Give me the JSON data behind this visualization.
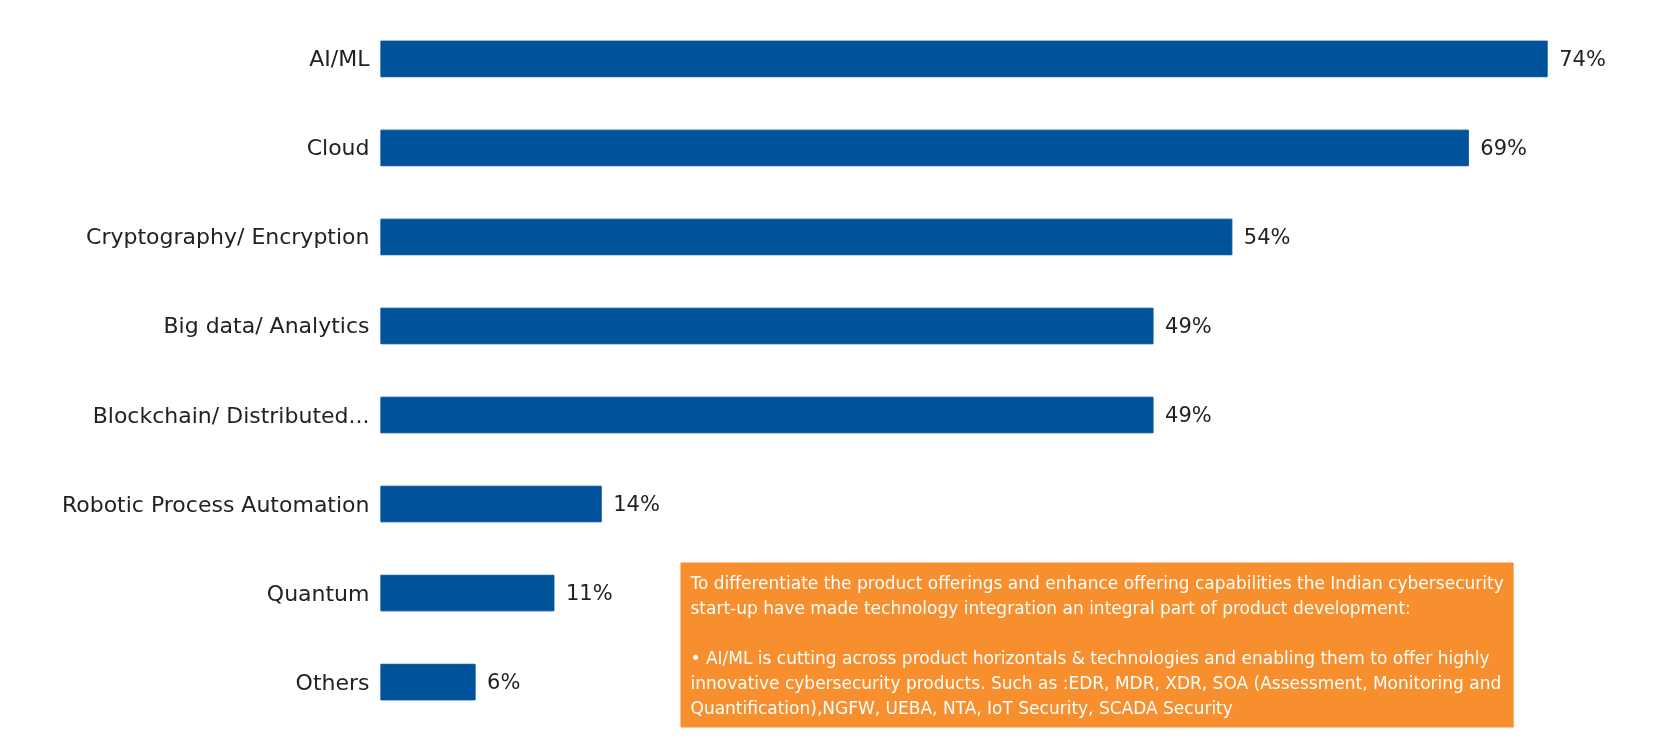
{
  "chart_data": {
    "type": "bar",
    "orientation": "horizontal",
    "categories": [
      "AI/ML",
      "Cloud",
      "Cryptography/ Encryption",
      "Big data/ Analytics",
      "Blockchain/ Distributed...",
      "Robotic Process Automation",
      "Quantum",
      "Others"
    ],
    "values": [
      74,
      69,
      54,
      49,
      49,
      14,
      11,
      6
    ],
    "value_labels": [
      "74%",
      "69%",
      "54%",
      "49%",
      "49%",
      "14%",
      "11%",
      "6%"
    ],
    "color": "#00529b",
    "grid": false,
    "tick_labels": "y",
    "annotations": [
      "To differentiate the product offerings and enhance offering capabilities the Indian cybersecurity start-up have made technology integration an integral part of product development:",
      "• AI/ML is cutting across product horizontals & technologies and enabling them to offer highly innovative cybersecurity products. Such as :EDR, MDR, XDR, SOA (Assessment, Monitoring and Quantification),NGFW, UEBA, NTA, IoT Security, SCADA Security"
    ]
  }
}
